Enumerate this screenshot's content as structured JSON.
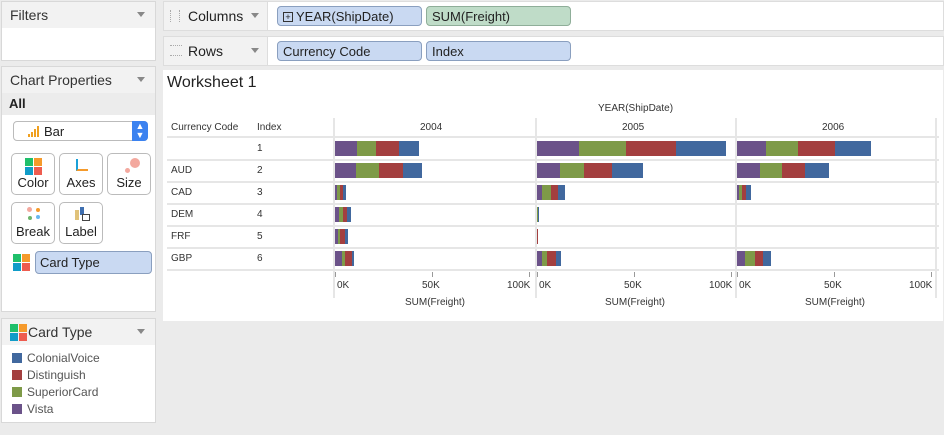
{
  "filters": {
    "title": "Filters"
  },
  "chart_properties": {
    "title": "Chart Properties",
    "scope": "All",
    "mark_type": "Bar",
    "buttons": [
      {
        "label": "Color"
      },
      {
        "label": "Axes"
      },
      {
        "label": "Size"
      },
      {
        "label": "Break"
      },
      {
        "label": "Label"
      }
    ],
    "color_field": "Card Type"
  },
  "legend": {
    "title": "Card Type",
    "items": [
      {
        "label": "ColonialVoice",
        "color": "#41689e"
      },
      {
        "label": "Distinguish",
        "color": "#a33f3f"
      },
      {
        "label": "SuperiorCard",
        "color": "#7e9a48"
      },
      {
        "label": "Vista",
        "color": "#6b5289"
      }
    ]
  },
  "columns": {
    "label": "Columns",
    "pills": [
      "YEAR(ShipDate)",
      "SUM(Freight)"
    ]
  },
  "rows": {
    "label": "Rows",
    "pills": [
      "Currency Code",
      "Index"
    ]
  },
  "worksheet": {
    "title": "Worksheet 1"
  },
  "chart_data": {
    "type": "bar",
    "orientation": "horizontal",
    "stacked": true,
    "column_header": "YEAR(ShipDate)",
    "row_headers": [
      "Currency Code",
      "Index"
    ],
    "years": [
      "2004",
      "2005",
      "2006"
    ],
    "rows": [
      {
        "code": "",
        "index": "1"
      },
      {
        "code": "AUD",
        "index": "2"
      },
      {
        "code": "CAD",
        "index": "3"
      },
      {
        "code": "DEM",
        "index": "4"
      },
      {
        "code": "FRF",
        "index": "5"
      },
      {
        "code": "GBP",
        "index": "6"
      }
    ],
    "series_order": [
      "Vista",
      "SuperiorCard",
      "Distinguish",
      "ColonialVoice"
    ],
    "values_k": {
      "2004": [
        [
          11.5,
          9.7,
          11.7,
          10.3
        ],
        [
          10.9,
          11.7,
          12.7,
          9.7
        ],
        [
          1,
          1.4,
          1.6,
          1.6
        ],
        [
          2.2,
          1.8,
          2.2,
          1.8
        ],
        [
          1.6,
          0.8,
          2.8,
          1.4
        ],
        [
          3.8,
          1.6,
          3.4,
          1.2
        ]
      ],
      "2005": [
        [
          21.8,
          24.2,
          25.6,
          25.8
        ],
        [
          11.9,
          12.1,
          14.5,
          15.9
        ],
        [
          2.8,
          4.2,
          3.8,
          3.8
        ],
        [
          0.2,
          0.2,
          0.2,
          0.3
        ],
        [
          0,
          0,
          0.6,
          0
        ],
        [
          2.4,
          3,
          4.2,
          3
        ]
      ],
      "2006": [
        [
          14.9,
          16.5,
          19,
          18.5
        ],
        [
          11.7,
          11.3,
          11.9,
          12.5
        ],
        [
          1,
          1.8,
          1.8,
          2.6
        ],
        [
          0,
          0,
          0,
          0
        ],
        [
          0,
          0,
          0,
          0
        ],
        [
          4.2,
          5.2,
          3.8,
          4.2
        ]
      ]
    },
    "x_ticks": [
      "0K",
      "50K",
      "100K"
    ],
    "x_tick_values": [
      0,
      50,
      100
    ],
    "xlim": [
      0,
      100
    ],
    "xlabel": "SUM(Freight)"
  }
}
